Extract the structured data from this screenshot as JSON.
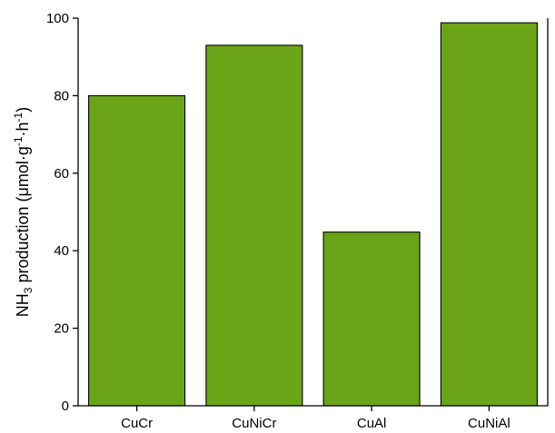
{
  "chart_data": {
    "type": "bar",
    "categories": [
      "CuCr",
      "CuNiCr",
      "CuAl",
      "CuNiAl"
    ],
    "values": [
      80,
      93,
      44.8,
      98.8
    ],
    "ylabel": {
      "prefix": "NH",
      "sub": "3",
      "main": " production (μmol·g",
      "sup1": "-1",
      "middle": "·h",
      "sup2": "-1",
      "suffix": ")"
    },
    "ylim": [
      0,
      100
    ],
    "yticks": [
      "0",
      "20",
      "40",
      "60",
      "80",
      "100"
    ],
    "bar_color": "#6aa517",
    "grid": false
  }
}
